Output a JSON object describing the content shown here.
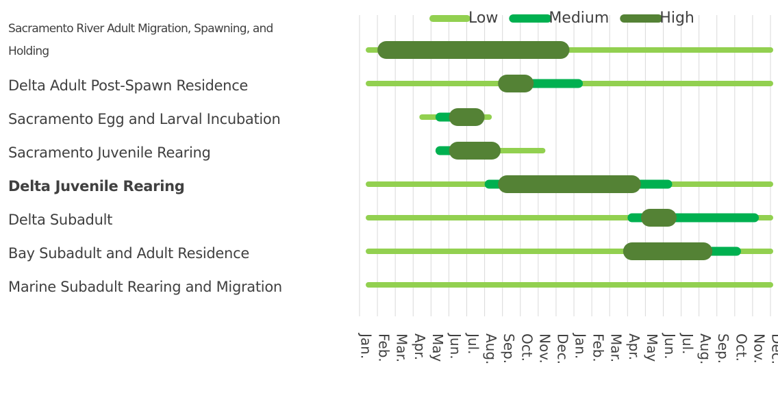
{
  "chart_data": {
    "type": "range",
    "categories": [
      "Sacramento River Adult Migration, Spawning, and Holding",
      "Delta Adult Post-Spawn Residence",
      "Sacramento Egg and Larval Incubation",
      "Sacramento Juvenile Rearing",
      "Delta Juvenile Rearing",
      "Delta Subadult",
      "Bay Subadult and Adult Residence",
      "Marine Subadult Rearing and Migration"
    ],
    "bold_category": 4,
    "series": [
      {
        "name": "Low",
        "color": "#92d050",
        "values": [
          [
            0.5,
            23
          ],
          [
            0.5,
            23
          ],
          [
            3.5,
            7.25
          ],
          [
            4.5,
            10.25
          ],
          [
            0.5,
            23
          ],
          [
            0.5,
            23
          ],
          [
            0.5,
            23
          ],
          [
            0.5,
            23
          ]
        ]
      },
      {
        "name": "Medium",
        "color": "#00b050",
        "values": [
          null,
          [
            8.25,
            12.25
          ],
          [
            4.5,
            6.5
          ],
          [
            4.5,
            7.5
          ],
          [
            7.25,
            17.25
          ],
          [
            15.25,
            22.1
          ],
          [
            15.25,
            21.1
          ],
          null
        ]
      },
      {
        "name": "High",
        "color": "#548235",
        "values": [
          [
            1.5,
            11.25
          ],
          [
            8.25,
            9.25
          ],
          [
            5.5,
            6.5
          ],
          [
            5.5,
            7.4
          ],
          [
            8.25,
            15.25
          ],
          [
            16.25,
            17.25
          ],
          [
            15.25,
            19.25
          ],
          null
        ]
      }
    ],
    "xlim": [
      0,
      23
    ],
    "xticks": [
      {
        "value": 0,
        "label": "Jan."
      },
      {
        "value": 1,
        "label": "Feb."
      },
      {
        "value": 2,
        "label": "Mar."
      },
      {
        "value": 3,
        "label": "Apr."
      },
      {
        "value": 4,
        "label": "May"
      },
      {
        "value": 5,
        "label": "Jun."
      },
      {
        "value": 6,
        "label": "Jul."
      },
      {
        "value": 7,
        "label": "Aug."
      },
      {
        "value": 8,
        "label": "Sep."
      },
      {
        "value": 9,
        "label": "Oct."
      },
      {
        "value": 10,
        "label": "Nov."
      },
      {
        "value": 11,
        "label": "Dec."
      },
      {
        "value": 12,
        "label": "Jan."
      },
      {
        "value": 13,
        "label": "Feb."
      },
      {
        "value": 14,
        "label": "Mar."
      },
      {
        "value": 15,
        "label": "Apr."
      },
      {
        "value": 16,
        "label": "May"
      },
      {
        "value": 17,
        "label": "Jun."
      },
      {
        "value": 18,
        "label": "Jul."
      },
      {
        "value": 19,
        "label": "Aug."
      },
      {
        "value": 20,
        "label": "Sep."
      },
      {
        "value": 21,
        "label": "Oct."
      },
      {
        "value": 22,
        "label": "Nov."
      },
      {
        "value": 23,
        "label": "Dec."
      }
    ],
    "grid": true,
    "legend": "top"
  }
}
